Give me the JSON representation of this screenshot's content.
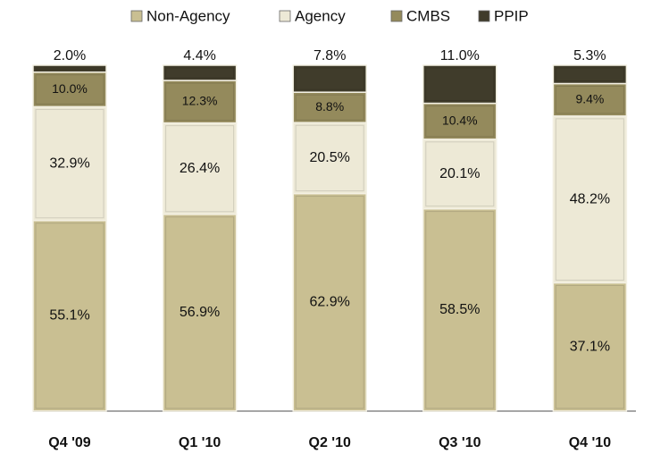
{
  "chart_data": {
    "type": "stacked_bar",
    "categories": [
      "Q4 '09",
      "Q1 '10",
      "Q2 '10",
      "Q3 '10",
      "Q4 '10"
    ],
    "series": [
      {
        "name": "Non-Agency",
        "color": "#c9bf92",
        "values": [
          55.1,
          56.9,
          62.9,
          58.5,
          37.1
        ],
        "value_labels": [
          "55.1%",
          "56.9%",
          "62.9%",
          "58.5%",
          "37.1%"
        ]
      },
      {
        "name": "Agency",
        "color": "#ede9d6",
        "values": [
          32.9,
          26.4,
          20.5,
          20.1,
          48.2
        ],
        "value_labels": [
          "32.9%",
          "26.4%",
          "20.5%",
          "20.1%",
          "48.2%"
        ]
      },
      {
        "name": "CMBS",
        "color": "#948a5c",
        "values": [
          10.0,
          12.3,
          8.8,
          10.4,
          9.4
        ],
        "value_labels": [
          "10.0%",
          "12.3%",
          "8.8%",
          "10.4%",
          "9.4%"
        ]
      },
      {
        "name": "PPIP",
        "color": "#403c2b",
        "values": [
          2.0,
          4.4,
          7.8,
          11.0,
          5.3
        ],
        "value_labels": [
          "2.0%",
          "4.4%",
          "7.8%",
          "11.0%",
          "5.3%"
        ]
      }
    ]
  }
}
